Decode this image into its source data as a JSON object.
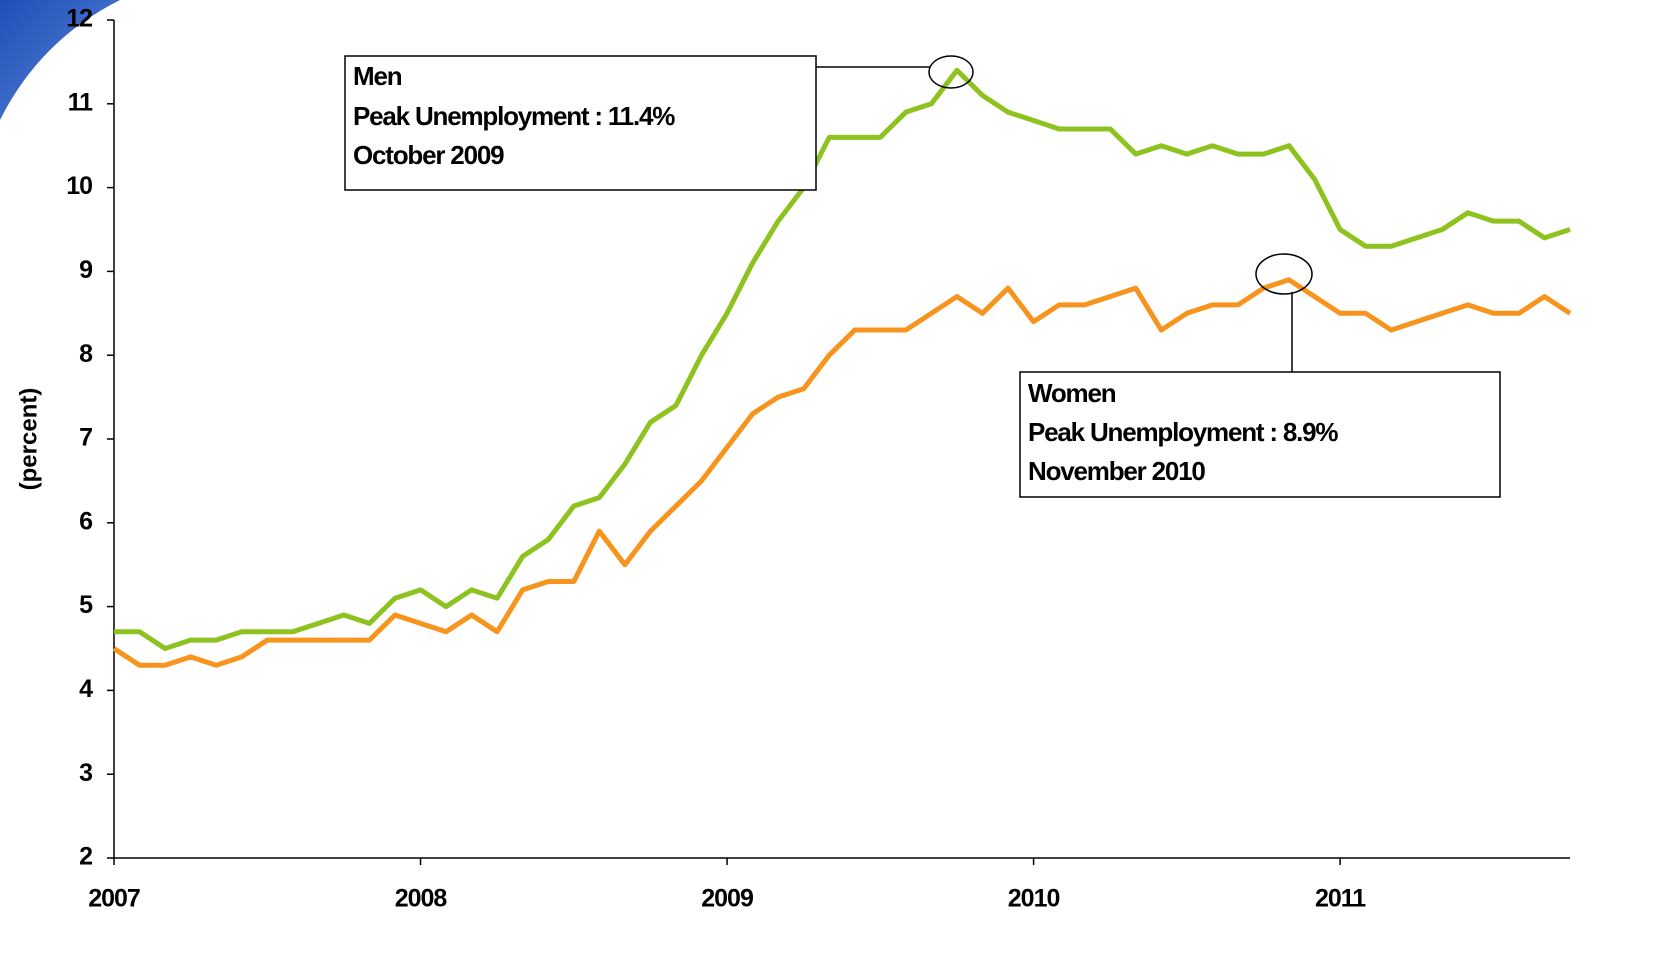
{
  "chart_data": {
    "type": "line",
    "y_label": "(percent)",
    "x": [
      2007,
      2007.0833,
      2007.1667,
      2007.25,
      2007.3333,
      2007.4167,
      2007.5,
      2007.5833,
      2007.6667,
      2007.75,
      2007.8333,
      2007.9167,
      2008,
      2008.0833,
      2008.1667,
      2008.25,
      2008.3333,
      2008.4167,
      2008.5,
      2008.5833,
      2008.6667,
      2008.75,
      2008.8333,
      2008.9167,
      2009,
      2009.0833,
      2009.1667,
      2009.25,
      2009.3333,
      2009.4167,
      2009.5,
      2009.5833,
      2009.6667,
      2009.75,
      2009.8333,
      2009.9167,
      2010,
      2010.0833,
      2010.1667,
      2010.25,
      2010.3333,
      2010.4167,
      2010.5,
      2010.5833,
      2010.6667,
      2010.75,
      2010.8333,
      2010.9167,
      2011,
      2011.0833,
      2011.1667,
      2011.25,
      2011.3333,
      2011.4167,
      2011.5,
      2011.5833,
      2011.6667,
      2011.75
    ],
    "series": [
      {
        "name": "Men",
        "color": "#8dc21f",
        "values": [
          4.7,
          4.7,
          4.5,
          4.6,
          4.6,
          4.7,
          4.7,
          4.7,
          4.8,
          4.9,
          4.8,
          5.1,
          5.2,
          5.0,
          5.2,
          5.1,
          5.6,
          5.8,
          6.2,
          6.3,
          6.7,
          7.2,
          7.4,
          8.0,
          8.5,
          9.1,
          9.6,
          10.0,
          10.6,
          10.6,
          10.6,
          10.9,
          11.0,
          11.4,
          11.1,
          10.9,
          10.8,
          10.7,
          10.7,
          10.7,
          10.4,
          10.5,
          10.4,
          10.5,
          10.4,
          10.4,
          10.5,
          10.1,
          9.5,
          9.3,
          9.3,
          9.4,
          9.5,
          9.7,
          9.6,
          9.6,
          9.4,
          9.5
        ]
      },
      {
        "name": "Women",
        "color": "#f7941d",
        "values": [
          4.5,
          4.3,
          4.3,
          4.4,
          4.3,
          4.4,
          4.6,
          4.6,
          4.6,
          4.6,
          4.6,
          4.9,
          4.8,
          4.7,
          4.9,
          4.7,
          5.2,
          5.3,
          5.3,
          5.9,
          5.5,
          5.9,
          6.2,
          6.5,
          6.9,
          7.3,
          7.5,
          7.6,
          8.0,
          8.3,
          8.3,
          8.3,
          8.5,
          8.7,
          8.5,
          8.8,
          8.4,
          8.6,
          8.6,
          8.7,
          8.8,
          8.3,
          8.5,
          8.6,
          8.6,
          8.8,
          8.9,
          8.7,
          8.5,
          8.5,
          8.3,
          8.4,
          8.5,
          8.6,
          8.5,
          8.5,
          8.7,
          8.5
        ]
      }
    ],
    "xlim": [
      2007,
      2011.75
    ],
    "xticks": [
      2007,
      2008,
      2009,
      2010,
      2011
    ],
    "ylim": [
      2,
      12
    ],
    "yticks": [
      2,
      3,
      4,
      5,
      6,
      7,
      8,
      9,
      10,
      11,
      12
    ],
    "annotations": [
      {
        "lines": [
          "Men",
          "Peak Unemployment : 11.4%",
          "October 2009"
        ]
      },
      {
        "lines": [
          "Women",
          "Peak Unemployment : 8.9%",
          "November 2010"
        ]
      }
    ]
  }
}
